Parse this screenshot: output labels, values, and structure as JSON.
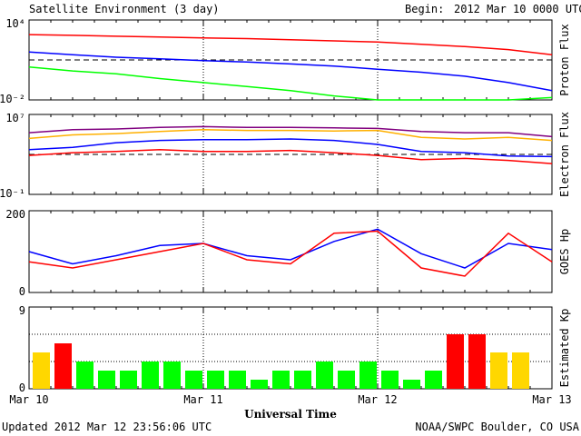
{
  "header": {
    "title": "Satellite Environment (3 day)",
    "begin_label": "Begin:",
    "begin_value": "2012 Mar 10 0000 UTC"
  },
  "footer": {
    "updated": "Updated 2012 Mar 12 23:56:06 UTC",
    "credit": "NOAA/SWPC Boulder, CO USA"
  },
  "xaxis": {
    "label": "Universal Time",
    "ticks": [
      "Mar 10",
      "Mar 11",
      "Mar 12",
      "Mar 13"
    ]
  },
  "colors": {
    "red": "#ff0000",
    "blue": "#0000ff",
    "green": "#00ff00",
    "orange": "#ffb000",
    "purple": "#800080",
    "yellow": "#ffd700"
  },
  "chart_data": [
    {
      "type": "line",
      "ylabel": "Proton Flux",
      "yscale": "log",
      "ylim": [
        0.01,
        10000
      ],
      "ytick_labels": [
        "10⁴",
        "10⁻²"
      ],
      "threshold": 10,
      "x_days": [
        0,
        0.25,
        0.5,
        0.75,
        1,
        1.25,
        1.5,
        1.75,
        2,
        2.25,
        2.5,
        2.75,
        3
      ],
      "series": [
        {
          "color": "red",
          "values": [
            800,
            700,
            600,
            520,
            450,
            400,
            330,
            270,
            220,
            150,
            100,
            60,
            25
          ]
        },
        {
          "color": "blue",
          "values": [
            40,
            25,
            16,
            12,
            9,
            7,
            5,
            3.5,
            2,
            1.2,
            0.6,
            0.2,
            0.05
          ]
        },
        {
          "color": "green",
          "values": [
            3,
            1.5,
            0.9,
            0.4,
            0.2,
            0.1,
            0.05,
            0.02,
            0.01,
            0.01,
            0.01,
            0.01,
            0.015
          ]
        }
      ]
    },
    {
      "type": "line",
      "ylabel": "Electron Flux",
      "yscale": "log",
      "ylim": [
        0.1,
        10000000
      ],
      "ytick_labels": [
        "10⁷",
        "10⁻¹"
      ],
      "threshold": 1000,
      "x_days": [
        0,
        0.25,
        0.5,
        0.75,
        1,
        1.25,
        1.5,
        1.75,
        2,
        2.25,
        2.5,
        2.75,
        3
      ],
      "series": [
        {
          "color": "purple",
          "values": [
            150000,
            300000,
            350000,
            500000,
            600000,
            500000,
            500000,
            450000,
            400000,
            200000,
            150000,
            150000,
            60000
          ]
        },
        {
          "color": "orange",
          "values": [
            40000,
            90000,
            120000,
            200000,
            300000,
            250000,
            250000,
            220000,
            250000,
            50000,
            35000,
            50000,
            25000
          ]
        },
        {
          "color": "blue",
          "values": [
            3000,
            5000,
            15000,
            25000,
            30000,
            30000,
            35000,
            25000,
            10000,
            2000,
            1500,
            700,
            600
          ]
        },
        {
          "color": "red",
          "values": [
            800,
            1500,
            2000,
            3000,
            2000,
            2000,
            2500,
            1500,
            800,
            300,
            400,
            250,
            120
          ]
        }
      ]
    },
    {
      "type": "line",
      "ylabel": "GOES Hp",
      "yscale": "linear",
      "ylim": [
        0,
        200
      ],
      "ytick_labels": [
        "200",
        "0"
      ],
      "x_days": [
        0,
        0.25,
        0.5,
        0.75,
        1,
        1.25,
        1.5,
        1.75,
        2,
        2.25,
        2.5,
        2.75,
        3
      ],
      "series": [
        {
          "color": "blue",
          "values": [
            100,
            70,
            90,
            115,
            120,
            90,
            80,
            125,
            155,
            95,
            60,
            120,
            105
          ]
        },
        {
          "color": "red",
          "values": [
            75,
            60,
            80,
            100,
            120,
            80,
            70,
            145,
            150,
            60,
            40,
            145,
            75
          ]
        }
      ]
    },
    {
      "type": "bar",
      "ylabel": "Estimated Kp",
      "ylim": [
        0,
        9
      ],
      "ytick_labels": [
        "9",
        "0"
      ],
      "bar_days": 0.125,
      "values": [
        4,
        5,
        3,
        2,
        2,
        3,
        3,
        2,
        2,
        2,
        1,
        2,
        2,
        3,
        2,
        3,
        2,
        1,
        2,
        6,
        6,
        4,
        4
      ],
      "bar_colors": [
        "yellow",
        "red",
        "green",
        "green",
        "green",
        "green",
        "green",
        "green",
        "green",
        "green",
        "green",
        "green",
        "green",
        "green",
        "green",
        "green",
        "green",
        "green",
        "green",
        "red",
        "red",
        "yellow",
        "yellow"
      ]
    }
  ]
}
